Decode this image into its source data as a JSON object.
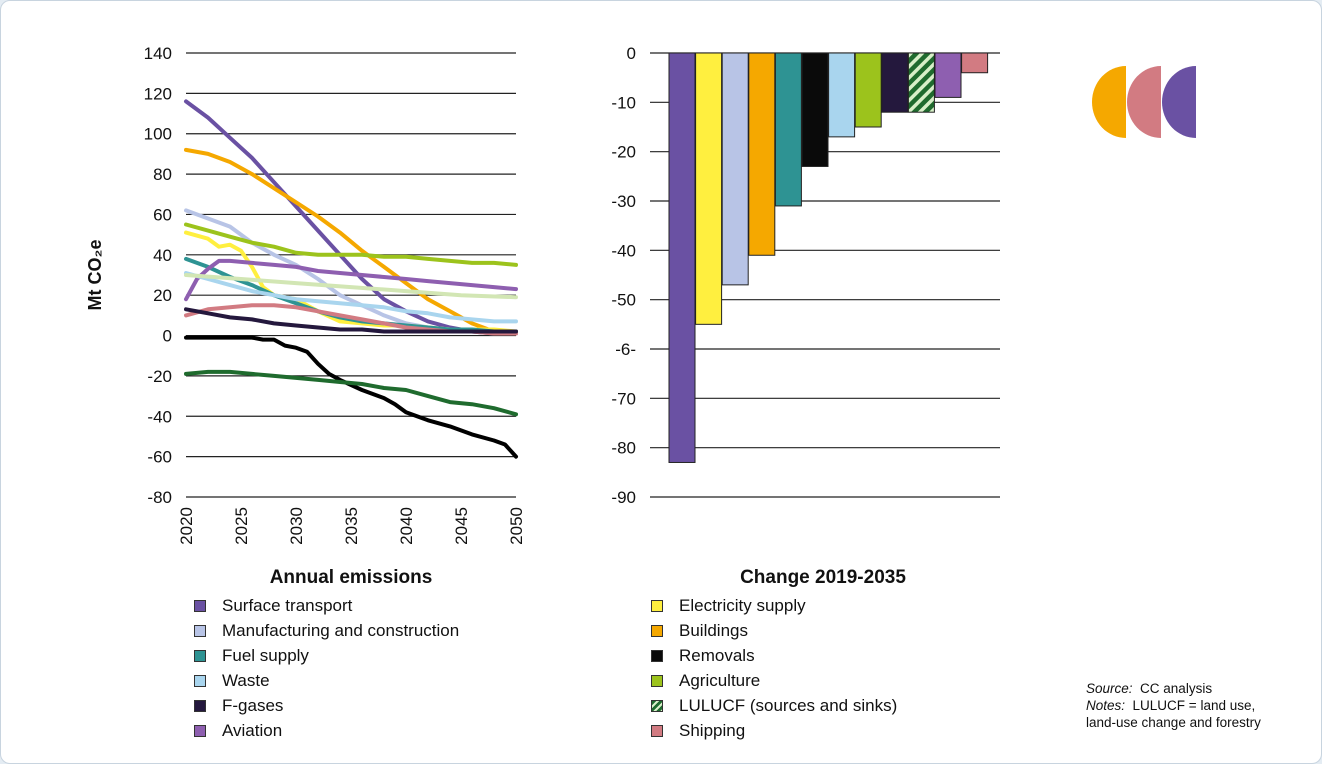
{
  "chart_data": [
    {
      "type": "line",
      "xlabel": "Annual emissions",
      "ylabel": "Mt CO₂e",
      "ylim": [
        -80,
        140
      ],
      "yticks": [
        "140",
        "120",
        "100",
        "80",
        "60",
        "40",
        "20",
        "0",
        "-20",
        "-40",
        "-60",
        "-80"
      ],
      "xlim": [
        2020,
        2050
      ],
      "xticks": [
        "2020",
        "2025",
        "2030",
        "2035",
        "2040",
        "2045",
        "2050"
      ],
      "grid": "horizontal",
      "series": [
        {
          "name": "Surface transport",
          "color": "#6a51a3",
          "x": [
            2020,
            2022,
            2024,
            2026,
            2028,
            2030,
            2032,
            2034,
            2036,
            2038,
            2040,
            2042,
            2044,
            2046,
            2048,
            2050
          ],
          "y": [
            116,
            108,
            98,
            88,
            76,
            64,
            52,
            40,
            28,
            18,
            12,
            7,
            4,
            2,
            1,
            1
          ]
        },
        {
          "name": "Buildings",
          "color": "#f5a800",
          "x": [
            2020,
            2022,
            2024,
            2026,
            2028,
            2030,
            2032,
            2034,
            2036,
            2038,
            2040,
            2042,
            2044,
            2046,
            2048,
            2050
          ],
          "y": [
            92,
            90,
            86,
            80,
            73,
            66,
            59,
            51,
            42,
            34,
            26,
            18,
            12,
            6,
            2,
            2
          ]
        },
        {
          "name": "Manufacturing and construction",
          "color": "#b8c4e6",
          "x": [
            2020,
            2022,
            2024,
            2026,
            2028,
            2030,
            2032,
            2034,
            2036,
            2038,
            2040,
            2042,
            2044,
            2046,
            2048,
            2050
          ],
          "y": [
            62,
            58,
            54,
            46,
            40,
            35,
            28,
            20,
            15,
            10,
            6,
            4,
            3,
            2,
            2,
            2
          ]
        },
        {
          "name": "Agriculture",
          "color": "#9cc31c",
          "x": [
            2020,
            2022,
            2024,
            2026,
            2028,
            2030,
            2032,
            2034,
            2036,
            2038,
            2040,
            2042,
            2044,
            2046,
            2048,
            2050
          ],
          "y": [
            55,
            52,
            49,
            46,
            44,
            41,
            40,
            40,
            40,
            39,
            39,
            38,
            37,
            36,
            36,
            35
          ]
        },
        {
          "name": "Electricity supply",
          "color": "#ffef3f",
          "x": [
            2020,
            2022,
            2023,
            2024,
            2025,
            2026,
            2027,
            2028,
            2030,
            2032,
            2034,
            2036,
            2038,
            2040,
            2042,
            2044,
            2046,
            2048,
            2050
          ],
          "y": [
            51,
            48,
            44,
            45,
            42,
            34,
            24,
            20,
            18,
            12,
            7,
            6,
            5,
            5,
            4,
            3,
            3,
            3,
            2
          ]
        },
        {
          "name": "Fuel supply",
          "color": "#2e9393",
          "x": [
            2020,
            2022,
            2024,
            2026,
            2028,
            2030,
            2032,
            2034,
            2036,
            2038,
            2040,
            2042,
            2044,
            2046,
            2048,
            2050
          ],
          "y": [
            38,
            34,
            29,
            25,
            20,
            16,
            12,
            9,
            7,
            6,
            5,
            4,
            3,
            3,
            2,
            2
          ]
        },
        {
          "name": "Aviation",
          "color": "#8e5fb0",
          "x": [
            2020,
            2021,
            2022,
            2023,
            2024,
            2026,
            2028,
            2030,
            2032,
            2034,
            2036,
            2038,
            2040,
            2042,
            2044,
            2046,
            2048,
            2050
          ],
          "y": [
            18,
            28,
            33,
            37,
            37,
            36,
            35,
            34,
            32,
            31,
            30,
            29,
            28,
            27,
            26,
            25,
            24,
            23
          ]
        },
        {
          "name": "Waste",
          "color": "#a9d5ee",
          "x": [
            2020,
            2022,
            2024,
            2026,
            2028,
            2030,
            2032,
            2034,
            2036,
            2038,
            2040,
            2042,
            2044,
            2046,
            2048,
            2050
          ],
          "y": [
            31,
            28,
            25,
            22,
            20,
            18,
            17,
            16,
            15,
            14,
            12,
            11,
            9,
            8,
            7,
            7
          ]
        },
        {
          "name": "",
          "color": "#d2e6b4",
          "x": [
            2020,
            2025,
            2030,
            2035,
            2040,
            2045,
            2050
          ],
          "y": [
            30,
            28,
            26,
            24,
            22,
            20,
            19
          ]
        },
        {
          "name": "Shipping",
          "color": "#d27b82",
          "x": [
            2020,
            2022,
            2024,
            2026,
            2028,
            2030,
            2032,
            2034,
            2036,
            2038,
            2040,
            2042,
            2044,
            2046,
            2048,
            2050
          ],
          "y": [
            10,
            13,
            14,
            15,
            15,
            14,
            12,
            10,
            8,
            6,
            4,
            3,
            2,
            2,
            1,
            1
          ]
        },
        {
          "name": "F-gases",
          "color": "#24183d",
          "x": [
            2020,
            2022,
            2024,
            2026,
            2028,
            2030,
            2032,
            2034,
            2036,
            2038,
            2040,
            2042,
            2044,
            2046,
            2048,
            2050
          ],
          "y": [
            13,
            11,
            9,
            8,
            6,
            5,
            4,
            3,
            3,
            2,
            2,
            2,
            2,
            2,
            2,
            2
          ]
        },
        {
          "name": "Removals",
          "color": "#000000",
          "x": [
            2020,
            2022,
            2024,
            2026,
            2027,
            2028,
            2029,
            2030,
            2031,
            2032,
            2033,
            2034,
            2036,
            2038,
            2039,
            2040,
            2042,
            2044,
            2046,
            2048,
            2049,
            2050
          ],
          "y": [
            -1,
            -1,
            -1,
            -1,
            -2,
            -2,
            -5,
            -6,
            -8,
            -14,
            -19,
            -22,
            -27,
            -31,
            -34,
            -38,
            -42,
            -45,
            -49,
            -52,
            -54,
            -60
          ]
        },
        {
          "name": "LULUCF (sources and sinks)",
          "color": "#1f6b2e",
          "x": [
            2020,
            2022,
            2024,
            2026,
            2028,
            2030,
            2032,
            2034,
            2036,
            2038,
            2040,
            2042,
            2044,
            2046,
            2048,
            2050
          ],
          "y": [
            -19,
            -18,
            -18,
            -19,
            -20,
            -21,
            -22,
            -23,
            -24,
            -26,
            -27,
            -30,
            -33,
            -34,
            -36,
            -39
          ]
        }
      ]
    },
    {
      "type": "bar",
      "xlabel": "Change 2019-2035",
      "ylim": [
        -90,
        0
      ],
      "yticks": [
        "0",
        "-10",
        "-20",
        "-30",
        "-40",
        "-50",
        "-6-",
        "-70",
        "-80",
        "-90"
      ],
      "grid": "horizontal",
      "bars": [
        {
          "name": "Surface transport",
          "value": -83,
          "color": "#6a51a3",
          "pattern": "solid"
        },
        {
          "name": "Electricity supply",
          "value": -55,
          "color": "#ffef3f",
          "pattern": "solid"
        },
        {
          "name": "Manufacturing and construction",
          "value": -47,
          "color": "#b8c4e6",
          "pattern": "solid"
        },
        {
          "name": "Buildings",
          "value": -41,
          "color": "#f5a800",
          "pattern": "solid"
        },
        {
          "name": "Fuel supply",
          "value": -31,
          "color": "#2e9393",
          "pattern": "solid"
        },
        {
          "name": "Removals",
          "value": -23,
          "color": "#0a0a0a",
          "pattern": "solid"
        },
        {
          "name": "Waste",
          "value": -17,
          "color": "#a9d5ee",
          "pattern": "solid"
        },
        {
          "name": "Agriculture",
          "value": -15,
          "color": "#9cc31c",
          "pattern": "solid"
        },
        {
          "name": "F-gases",
          "value": -12,
          "color": "#24183d",
          "pattern": "solid"
        },
        {
          "name": "LULUCF (sources and sinks)",
          "value": -12,
          "color": "#1f6b2e",
          "pattern": "hatched"
        },
        {
          "name": "Aviation",
          "value": -9,
          "color": "#8e5fb0",
          "pattern": "solid"
        },
        {
          "name": "Shipping",
          "value": -4,
          "color": "#d27b82",
          "pattern": "solid"
        }
      ]
    }
  ],
  "legend": {
    "left": [
      {
        "label": "Surface transport",
        "color": "#6a51a3"
      },
      {
        "label": "Manufacturing and construction",
        "color": "#b8c4e6"
      },
      {
        "label": "Fuel supply",
        "color": "#2e9393"
      },
      {
        "label": "Waste",
        "color": "#a9d5ee"
      },
      {
        "label": "F-gases",
        "color": "#24183d"
      },
      {
        "label": "Aviation",
        "color": "#8e5fb0"
      }
    ],
    "right": [
      {
        "label": "Electricity supply",
        "color": "#ffef3f"
      },
      {
        "label": "Buildings",
        "color": "#f5a800"
      },
      {
        "label": "Removals",
        "color": "#0a0a0a"
      },
      {
        "label": "Agriculture",
        "color": "#9cc31c"
      },
      {
        "label": "LULUCF (sources and sinks)",
        "color": "#1f6b2e",
        "pattern": "hatched"
      },
      {
        "label": "Shipping",
        "color": "#d27b82"
      }
    ]
  },
  "source": {
    "source_label": "Source:",
    "source_text": "CC analysis",
    "notes_label": "Notes:",
    "notes_text_1": "LULUCF = land use,",
    "notes_text_2": "land-use change and forestry"
  },
  "logo": {
    "colors": [
      "#f5a800",
      "#d27b82",
      "#6a51a3"
    ]
  }
}
